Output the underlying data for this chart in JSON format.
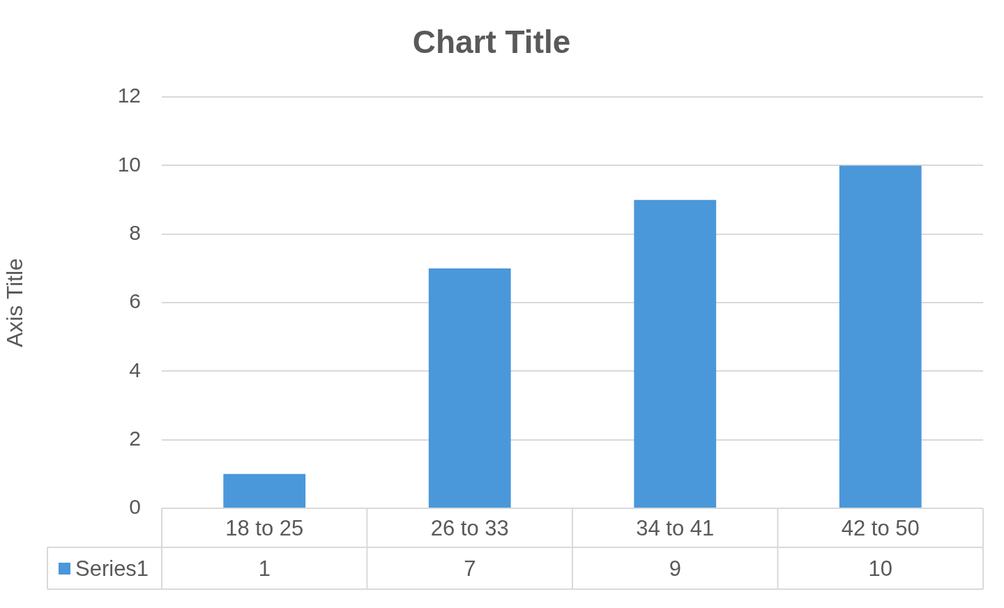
{
  "chart_data": {
    "type": "bar",
    "title": "Chart Title",
    "ylabel": "Axis Title",
    "categories": [
      "18 to 25",
      "26 to 33",
      "34 to 41",
      "42 to 50"
    ],
    "series": [
      {
        "name": "Series1",
        "color": "#4a97da",
        "values": [
          1,
          7,
          9,
          10
        ]
      }
    ],
    "ylim": [
      0,
      12
    ],
    "yticks": [
      0,
      2,
      4,
      6,
      8,
      10,
      12
    ],
    "grid": "y",
    "legend": "bottom",
    "data_labels": true
  }
}
